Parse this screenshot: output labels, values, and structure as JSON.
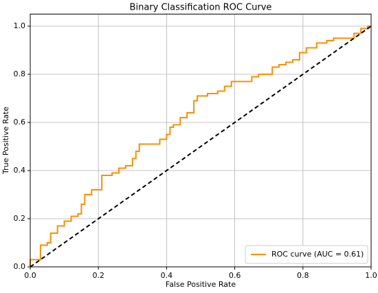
{
  "chart_data": {
    "type": "line",
    "title": "Binary Classification ROC Curve",
    "x_label": "False Positive Rate",
    "y_label": "True Positive Rate",
    "xlim": [
      0,
      1
    ],
    "ylim": [
      0,
      1.05
    ],
    "xticks": [
      {
        "value": 0,
        "label": "0.0"
      },
      0.2,
      0.4,
      0.6,
      0.8,
      {
        "value": 1,
        "label": "1.0"
      }
    ],
    "yticks": [
      {
        "value": 0,
        "label": "0.0"
      },
      0.2,
      0.4,
      0.6,
      0.8,
      {
        "value": 1,
        "label": "1.0"
      }
    ],
    "grid": true,
    "legend": "lower right",
    "series": [
      {
        "name": "ROC curve (AUC = 0.61)",
        "color": "#ff8c00",
        "x": [
          0,
          0,
          0.03,
          0.03,
          0.05,
          0.05,
          0.06,
          0.06,
          0.08,
          0.08,
          0.1,
          0.1,
          0.12,
          0.12,
          0.14,
          0.14,
          0.15,
          0.15,
          0.16,
          0.16,
          0.18,
          0.18,
          0.21,
          0.21,
          0.24,
          0.24,
          0.26,
          0.26,
          0.28,
          0.28,
          0.3,
          0.3,
          0.31,
          0.31,
          0.32,
          0.32,
          0.38,
          0.38,
          0.4,
          0.4,
          0.41,
          0.41,
          0.42,
          0.42,
          0.44,
          0.44,
          0.46,
          0.46,
          0.48,
          0.48,
          0.49,
          0.49,
          0.52,
          0.52,
          0.55,
          0.55,
          0.57,
          0.57,
          0.59,
          0.59,
          0.65,
          0.65,
          0.67,
          0.67,
          0.71,
          0.71,
          0.73,
          0.73,
          0.75,
          0.75,
          0.77,
          0.77,
          0.79,
          0.79,
          0.81,
          0.81,
          0.84,
          0.84,
          0.87,
          0.87,
          0.89,
          0.89,
          0.95,
          0.95,
          0.97,
          0.97,
          0.99,
          0.99,
          1
        ],
        "values": [
          0,
          0.03,
          0.03,
          0.09,
          0.09,
          0.1,
          0.1,
          0.14,
          0.14,
          0.17,
          0.17,
          0.19,
          0.19,
          0.21,
          0.21,
          0.22,
          0.22,
          0.26,
          0.26,
          0.3,
          0.3,
          0.32,
          0.32,
          0.38,
          0.38,
          0.39,
          0.39,
          0.41,
          0.41,
          0.42,
          0.42,
          0.45,
          0.45,
          0.48,
          0.48,
          0.51,
          0.51,
          0.53,
          0.53,
          0.55,
          0.55,
          0.58,
          0.58,
          0.59,
          0.59,
          0.62,
          0.62,
          0.64,
          0.64,
          0.69,
          0.69,
          0.71,
          0.71,
          0.72,
          0.72,
          0.73,
          0.73,
          0.75,
          0.75,
          0.77,
          0.77,
          0.79,
          0.79,
          0.8,
          0.8,
          0.83,
          0.83,
          0.84,
          0.84,
          0.85,
          0.85,
          0.86,
          0.86,
          0.89,
          0.89,
          0.91,
          0.91,
          0.93,
          0.93,
          0.94,
          0.94,
          0.95,
          0.95,
          0.97,
          0.97,
          0.99,
          0.99,
          1,
          1
        ]
      },
      {
        "color": "#000000",
        "dashed": true,
        "x": [
          0,
          1
        ],
        "values": [
          0,
          1
        ]
      }
    ]
  }
}
